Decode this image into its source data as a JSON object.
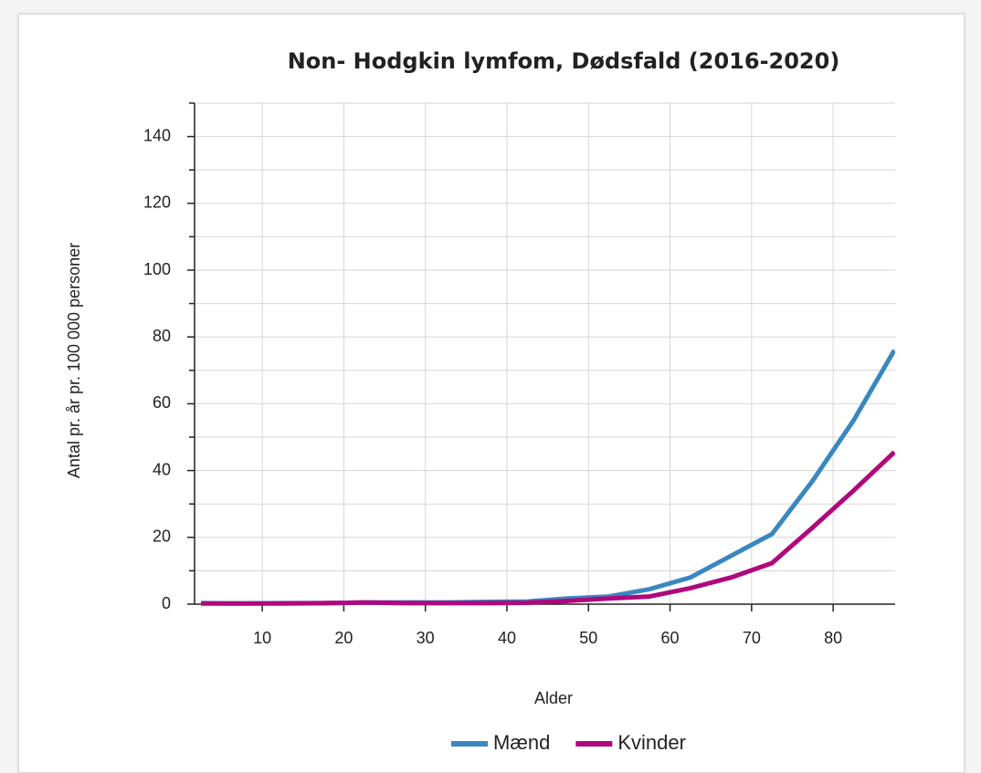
{
  "chart_data": {
    "type": "line",
    "title": "Non- Hodgkin lymfom, Dødsfald (2016-2020)",
    "x_label": "Alder",
    "y_label": "Antal pr. år pr. 100 000 personer",
    "x": [
      2.5,
      7.5,
      12.5,
      17.5,
      22.5,
      27.5,
      32.5,
      37.5,
      42.5,
      47.5,
      52.5,
      57.5,
      62.5,
      67.5,
      72.5,
      77.5,
      82.5,
      87.5
    ],
    "series": [
      {
        "name": "Mænd",
        "color": "#3a87c0",
        "values": [
          0.3,
          0.2,
          0.3,
          0.3,
          0.5,
          0.5,
          0.5,
          0.7,
          0.8,
          1.7,
          2.3,
          4.5,
          8,
          14.5,
          21,
          37,
          55,
          76
        ]
      },
      {
        "name": "Kvinder",
        "color": "#b0077e",
        "values": [
          0.2,
          0.2,
          0.2,
          0.3,
          0.5,
          0.3,
          0.3,
          0.3,
          0.4,
          1,
          1.7,
          2.3,
          4.8,
          8,
          12.3,
          23,
          34,
          45.5
        ]
      }
    ],
    "xlim": [
      1.7,
      87.6
    ],
    "xticks": [
      10,
      20,
      30,
      40,
      50,
      60,
      70,
      80
    ],
    "ylim": [
      0,
      150
    ],
    "yticks": [
      0,
      20,
      40,
      60,
      80,
      100,
      120,
      140
    ],
    "y_minor_ticks": [
      10,
      30,
      50,
      70,
      90,
      110,
      130,
      150
    ],
    "grid": true,
    "legend": "bottom"
  }
}
